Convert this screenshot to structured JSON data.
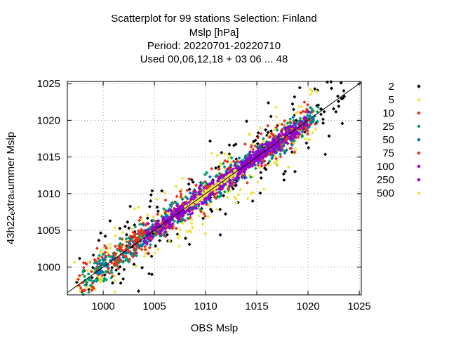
{
  "chart_data": {
    "type": "scatter",
    "title_lines": [
      "Scatterplot for   99 stations Selection: Finland",
      "Mslp [hPa]",
      "Period: 20220701-20220710",
      "Used  00,06,12,18  + 03 06 ... 48"
    ],
    "xlabel": "OBS Mslp",
    "ylabel": "43h22ₑxtraₛummer Mslp",
    "xlim": [
      996.5,
      1025.2
    ],
    "ylim": [
      996.2,
      1025.3
    ],
    "xticks": [
      1000,
      1005,
      1010,
      1015,
      1020,
      1025
    ],
    "yticks": [
      1000,
      1005,
      1010,
      1015,
      1020,
      1025
    ],
    "grid": true,
    "diagonal_line": true,
    "legend_position": "right",
    "series": [
      {
        "name": "2",
        "color": "#000000",
        "halfwidth": 4.0,
        "n": 230,
        "range": [
          997,
          1024
        ]
      },
      {
        "name": "5",
        "color": "#f0e442",
        "halfwidth": 3.0,
        "n": 260,
        "range": [
          997,
          1021
        ]
      },
      {
        "name": "10",
        "color": "#e3331c",
        "halfwidth": 2.0,
        "n": 280,
        "range": [
          997.5,
          1021
        ]
      },
      {
        "name": "25",
        "color": "#009e73",
        "halfwidth": 1.5,
        "n": 320,
        "range": [
          998,
          1021
        ]
      },
      {
        "name": "50",
        "color": "#0072b2",
        "halfwidth": 1.2,
        "n": 260,
        "range": [
          999,
          1021
        ]
      },
      {
        "name": "75",
        "color": "#e3331c",
        "halfwidth": 1.0,
        "n": 220,
        "range": [
          1001,
          1020
        ]
      },
      {
        "name": "100",
        "color": "#9400d3",
        "halfwidth": 0.9,
        "n": 360,
        "range": [
          1004,
          1020
        ]
      },
      {
        "name": "250",
        "color": "#9400d3",
        "halfwidth": 0.5,
        "n": 200,
        "range": [
          1006,
          1017
        ]
      },
      {
        "name": "500",
        "color": "#f0e442",
        "halfwidth": 0.3,
        "n": 110,
        "range": [
          1008,
          1013
        ]
      }
    ]
  }
}
